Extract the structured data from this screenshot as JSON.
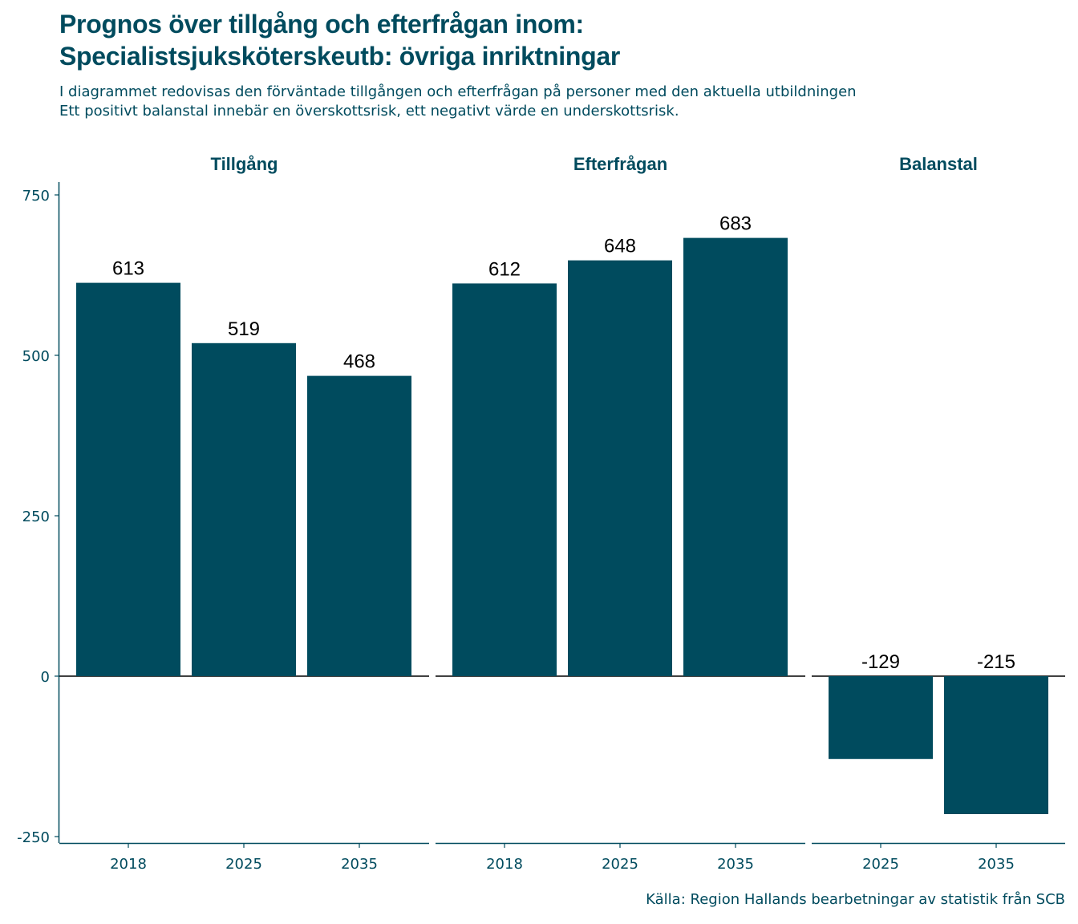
{
  "header": {
    "title_lines": [
      "Prognos över tillgång och efterfrågan inom:",
      "Specialistsjuksköterskeutb: övriga inriktningar"
    ],
    "subtitle_lines": [
      "I diagrammet redovisas den förväntade tillgången och efterfrågan på personer med den aktuella utbildningen",
      "Ett positivt balanstal innebär en överskottsrisk, ett negativt värde en underskottsrisk."
    ],
    "caption": "Källa: Region Hallands bearbetningar av statistik från SCB"
  },
  "colors": {
    "bar": "#004b5e",
    "text": "#004b5e",
    "label": "#000000"
  },
  "chart_data": {
    "type": "bar",
    "title": "Prognos över tillgång och efterfrågan inom: Specialistsjuksköterskeutb: övriga inriktningar",
    "ylim": [
      -260,
      770
    ],
    "yticks": [
      -250,
      0,
      250,
      500,
      750
    ],
    "ytick_labels": [
      "-250",
      "0",
      "250",
      "500",
      "750"
    ],
    "grid": false,
    "facets": [
      {
        "name": "Tillgång",
        "categories": [
          "2018",
          "2025",
          "2035"
        ],
        "values": [
          613,
          519,
          468
        ],
        "labels": [
          "613",
          "519",
          "468"
        ]
      },
      {
        "name": "Efterfrågan",
        "categories": [
          "2018",
          "2025",
          "2035"
        ],
        "values": [
          612,
          648,
          683
        ],
        "labels": [
          "612",
          "648",
          "683"
        ]
      },
      {
        "name": "Balanstal",
        "categories": [
          "2025",
          "2035"
        ],
        "values": [
          -129,
          -215
        ],
        "labels": [
          "-129",
          "-215"
        ]
      }
    ]
  }
}
